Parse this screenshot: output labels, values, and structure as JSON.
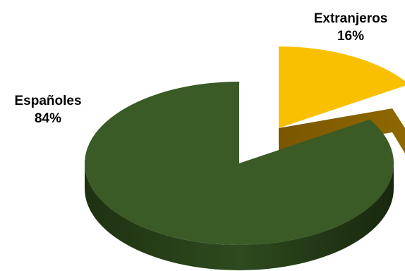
{
  "chart_data": {
    "type": "pie",
    "title": "",
    "legend": "none",
    "slices": [
      {
        "name": "Españoles",
        "value": 84,
        "label": "84%",
        "color": "#3A5A26",
        "side_color": "#263D18"
      },
      {
        "name": "Extranjeros",
        "value": 16,
        "label": "16%",
        "color": "#F8C000",
        "side_color": "#8A6400"
      }
    ],
    "exploded": "Extranjeros"
  }
}
